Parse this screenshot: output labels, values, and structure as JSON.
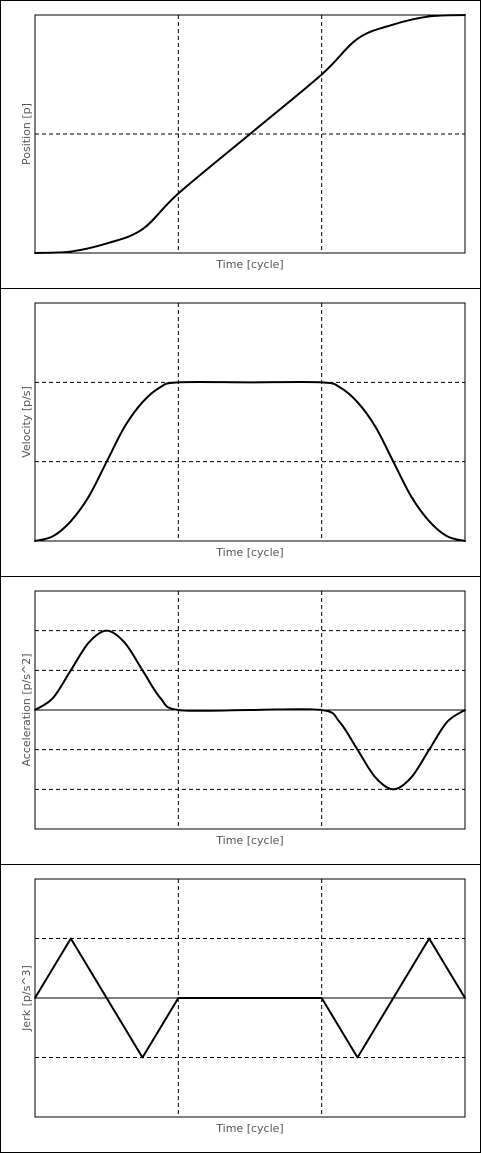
{
  "chart_data": [
    {
      "type": "line",
      "title": "",
      "xlabel": "Time [cycle]",
      "ylabel": "Position [p]",
      "xlim": [
        0,
        3
      ],
      "ylim": [
        0,
        1
      ],
      "xgrid": [
        1,
        2
      ],
      "ygrid": [
        0.5
      ],
      "zero_line": false,
      "series": [
        {
          "x": [
            0,
            0.25,
            0.5,
            0.75,
            1.0,
            1.5,
            2.0,
            2.25,
            2.5,
            2.75,
            3.0
          ],
          "values": [
            0,
            0.006,
            0.04,
            0.1,
            0.25,
            0.5,
            0.75,
            0.9,
            0.96,
            0.994,
            1.0
          ]
        }
      ]
    },
    {
      "type": "line",
      "title": "",
      "xlabel": "Time [cycle]",
      "ylabel": "Velocity [p/s]",
      "xlim": [
        0,
        3
      ],
      "ylim": [
        0,
        1.5
      ],
      "xgrid": [
        1,
        2
      ],
      "ygrid": [
        0.5,
        1.0
      ],
      "zero_line": false,
      "series": [
        {
          "x": [
            0,
            0.125,
            0.25,
            0.375,
            0.5,
            0.625,
            0.75,
            0.875,
            1.0,
            1.5,
            2.0,
            2.125,
            2.25,
            2.375,
            2.5,
            2.625,
            2.75,
            2.875,
            3.0
          ],
          "values": [
            0,
            0.03,
            0.125,
            0.28,
            0.5,
            0.72,
            0.875,
            0.97,
            1.0,
            1.0,
            1.0,
            0.97,
            0.875,
            0.72,
            0.5,
            0.28,
            0.125,
            0.03,
            0
          ]
        }
      ]
    },
    {
      "type": "line",
      "title": "",
      "xlabel": "Time [cycle]",
      "ylabel": "Acceleration [p/s^2]",
      "xlim": [
        0,
        3
      ],
      "ylim": [
        -3,
        3
      ],
      "xgrid": [
        1,
        2
      ],
      "ygrid": [
        -2,
        -1,
        1,
        2
      ],
      "zero_line": true,
      "series": [
        {
          "x": [
            0,
            0.125,
            0.25,
            0.375,
            0.5,
            0.625,
            0.75,
            0.875,
            1.0,
            1.5,
            2.0,
            2.125,
            2.25,
            2.375,
            2.5,
            2.625,
            2.75,
            2.875,
            3.0
          ],
          "values": [
            0,
            0.3,
            1.0,
            1.7,
            2.0,
            1.7,
            1.0,
            0.3,
            0,
            0,
            0,
            -0.3,
            -1.0,
            -1.7,
            -2.0,
            -1.7,
            -1.0,
            -0.3,
            0
          ]
        }
      ]
    },
    {
      "type": "line",
      "title": "",
      "xlabel": "Time [cycle]",
      "ylabel": "Jerk [p/s^3]",
      "xlim": [
        0,
        3
      ],
      "ylim": [
        -2,
        2
      ],
      "xgrid": [
        1,
        2
      ],
      "ygrid": [
        -1,
        1
      ],
      "zero_line": true,
      "series": [
        {
          "x": [
            0,
            0.25,
            0.75,
            1.0,
            2.0,
            2.25,
            2.75,
            3.0
          ],
          "values": [
            0,
            1,
            -1,
            0,
            0,
            -1,
            1,
            0
          ]
        }
      ]
    }
  ]
}
